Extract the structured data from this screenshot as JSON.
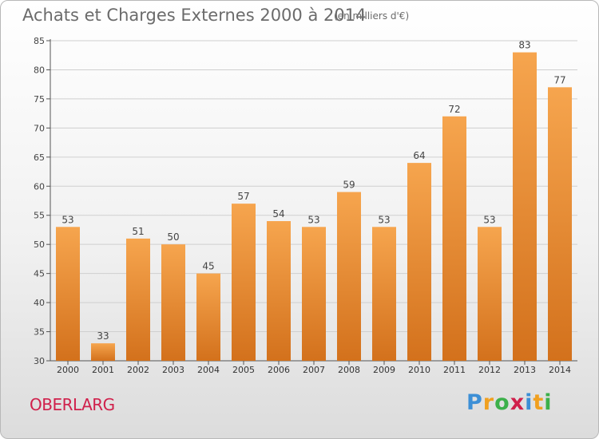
{
  "title": "Achats et Charges Externes 2000 à 2014",
  "subtitle": "(en milliers d'€)",
  "commune": "OBERLARG",
  "logo": {
    "letters": [
      "P",
      "r",
      "o",
      "x",
      "i",
      "t",
      "i"
    ],
    "colors": [
      "#3c8fd6",
      "#f0a020",
      "#3cb04a",
      "#d0204b",
      "#3c8fd6",
      "#f0a020",
      "#3cb04a"
    ]
  },
  "colors": {
    "bar_top": "#f6a54e",
    "bar_bottom": "#d3711c",
    "axis": "#555555",
    "grid": "#cfcfcf"
  },
  "chart_data": {
    "type": "bar",
    "categories": [
      "2000",
      "2001",
      "2002",
      "2003",
      "2004",
      "2005",
      "2006",
      "2007",
      "2008",
      "2009",
      "2010",
      "2011",
      "2012",
      "2013",
      "2014"
    ],
    "values": [
      53,
      33,
      51,
      50,
      45,
      57,
      54,
      53,
      59,
      53,
      64,
      72,
      53,
      83,
      77
    ],
    "ylim": [
      30,
      85
    ],
    "yticks": [
      30,
      35,
      40,
      45,
      50,
      55,
      60,
      65,
      70,
      75,
      80,
      85
    ],
    "grid": "horizontal",
    "data_labels": true
  }
}
